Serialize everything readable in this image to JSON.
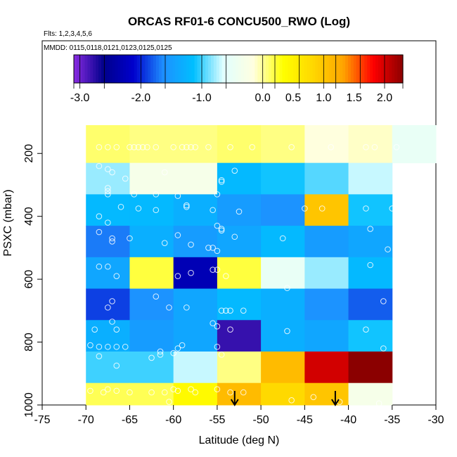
{
  "chart_data": {
    "type": "heatmap",
    "title": "ORCAS RF01-6 CONCU500_RWO (Log)",
    "subtitle_flights": "Flts: 1,2,3,4,5,6",
    "subtitle_dates": "MMDD: 0115,0118,0121,0123,0125,0125",
    "xlabel": "Latitude (deg N)",
    "ylabel": "PSXC (mbar)",
    "xlim": [
      -75,
      -30
    ],
    "ylim": [
      1000,
      110
    ],
    "x_ticks": [
      -75,
      -70,
      -65,
      -60,
      -55,
      -50,
      -45,
      -40,
      -35,
      -30
    ],
    "y_ticks": [
      200,
      400,
      600,
      800,
      1000
    ],
    "colorbar": {
      "range": [
        -3.1,
        2.3
      ],
      "ticks": [
        -3.0,
        -2.0,
        -1.0,
        0.0,
        0.5,
        1.0,
        1.5,
        2.0
      ],
      "tick_labels": [
        "-3.0",
        "-2.0",
        "-1.0",
        "0.0",
        "0.5",
        "1.0",
        "1.5",
        "2.0"
      ],
      "segment_boundaries": [
        -3.1,
        -3.0,
        -2.6,
        -2.0,
        -1.6,
        -1.0,
        -0.6,
        0.0,
        0.2,
        0.6,
        1.0,
        1.2,
        1.6,
        2.0,
        2.3
      ],
      "colors": [
        "#8a2be2",
        "#00008b",
        "#0000cd",
        "#1e90ff",
        "#00bfff",
        "#e0ffff",
        "#ffffe0",
        "#ffff00",
        "#ffd700",
        "#ffa500",
        "#ff0000",
        "#8b0000"
      ]
    },
    "x_bins": [
      -70,
      -65,
      -60,
      -55,
      -50,
      -45,
      -40,
      -35,
      -30
    ],
    "y_bins": [
      110,
      230,
      330,
      430,
      530,
      630,
      730,
      830,
      930,
      1000
    ],
    "cells": [
      {
        "row": 0,
        "values": [
          0.1,
          0.05,
          0.05,
          0.1,
          0.05,
          -0.15,
          -0.1,
          -0.5
        ]
      },
      {
        "row": 1,
        "values": [
          -0.8,
          -0.3,
          -0.3,
          -1.2,
          -1.1,
          -0.95,
          -0.7,
          null
        ]
      },
      {
        "row": 2,
        "values": [
          -1.2,
          -1.2,
          -1.3,
          -1.5,
          -1.6,
          1.0,
          -1.1,
          null
        ]
      },
      {
        "row": 3,
        "values": [
          -1.7,
          -1.3,
          -1.5,
          -1.4,
          -1.2,
          -1.5,
          -1.4,
          null
        ]
      },
      {
        "row": 4,
        "values": [
          -1.4,
          0.2,
          -2.3,
          0.2,
          -0.5,
          -0.8,
          -1.2,
          null
        ]
      },
      {
        "row": 5,
        "values": [
          -1.9,
          -1.6,
          -1.4,
          -1.2,
          -1.3,
          -1.6,
          -1.8,
          null
        ]
      },
      {
        "row": 6,
        "values": [
          -1.3,
          -1.5,
          -1.4,
          -2.8,
          -1.3,
          -1.4,
          -1.1,
          null
        ]
      },
      {
        "row": 7,
        "values": [
          -1.0,
          -1.0,
          -0.7,
          0.05,
          1.1,
          2.0,
          2.3,
          null
        ]
      },
      {
        "row": 8,
        "values": [
          0.15,
          0.15,
          0.4,
          1.1,
          0.8,
          1.0,
          -0.3,
          null
        ]
      }
    ],
    "points": [
      [
        -68.5,
        180
      ],
      [
        -67.5,
        180
      ],
      [
        -66.5,
        180
      ],
      [
        -65,
        180
      ],
      [
        -64.5,
        180
      ],
      [
        -64,
        180
      ],
      [
        -63.5,
        180
      ],
      [
        -63,
        180
      ],
      [
        -62,
        180
      ],
      [
        -60,
        180
      ],
      [
        -59,
        180
      ],
      [
        -58.5,
        180
      ],
      [
        -58,
        180
      ],
      [
        -57.5,
        180
      ],
      [
        -56,
        180
      ],
      [
        -53.5,
        180
      ],
      [
        -51,
        180
      ],
      [
        -46.5,
        180
      ],
      [
        -42,
        180
      ],
      [
        -38,
        180
      ],
      [
        -37,
        180
      ],
      [
        -34.5,
        180
      ],
      [
        -68.5,
        240
      ],
      [
        -67.5,
        250
      ],
      [
        -67,
        260
      ],
      [
        -65.5,
        280
      ],
      [
        -61,
        260
      ],
      [
        -54.5,
        290
      ],
      [
        -54.5,
        285
      ],
      [
        -53,
        255
      ],
      [
        -67.5,
        310
      ],
      [
        -67.5,
        320
      ],
      [
        -67.5,
        330
      ],
      [
        -64.5,
        330
      ],
      [
        -62,
        330
      ],
      [
        -59.5,
        335
      ],
      [
        -55,
        330
      ],
      [
        -68.5,
        400
      ],
      [
        -66,
        370
      ],
      [
        -64,
        375
      ],
      [
        -62,
        380
      ],
      [
        -58.5,
        365
      ],
      [
        -58.5,
        370
      ],
      [
        -55.5,
        380
      ],
      [
        -52.5,
        385
      ],
      [
        -45,
        375
      ],
      [
        -43,
        375
      ],
      [
        -38,
        375
      ],
      [
        -35,
        375
      ],
      [
        -67.5,
        420
      ],
      [
        -68.5,
        450
      ],
      [
        -67,
        470
      ],
      [
        -67,
        480
      ],
      [
        -65,
        470
      ],
      [
        -61,
        485
      ],
      [
        -59.5,
        460
      ],
      [
        -58,
        490
      ],
      [
        -56,
        500
      ],
      [
        -55.5,
        500
      ],
      [
        -55,
        510
      ],
      [
        -55,
        430
      ],
      [
        -54.5,
        440
      ],
      [
        -54.5,
        445
      ],
      [
        -53,
        465
      ],
      [
        -47.5,
        470
      ],
      [
        -37.5,
        440
      ],
      [
        -35.5,
        505
      ],
      [
        -68.5,
        560
      ],
      [
        -67.5,
        560
      ],
      [
        -66.5,
        590
      ],
      [
        -59.5,
        590
      ],
      [
        -58,
        580
      ],
      [
        -55.5,
        570
      ],
      [
        -55,
        570
      ],
      [
        -54,
        590
      ],
      [
        -37.5,
        555
      ],
      [
        -67,
        670
      ],
      [
        -67.5,
        690
      ],
      [
        -62,
        655
      ],
      [
        -60.5,
        690
      ],
      [
        -58.5,
        690
      ],
      [
        -54.5,
        700
      ],
      [
        -54,
        700
      ],
      [
        -53.5,
        700
      ],
      [
        -52,
        700
      ],
      [
        -47,
        628
      ],
      [
        -36,
        670
      ],
      [
        -67,
        735
      ],
      [
        -69,
        760
      ],
      [
        -66.5,
        760
      ],
      [
        -55.5,
        740
      ],
      [
        -55,
        750
      ],
      [
        -53.5,
        760
      ],
      [
        -47,
        765
      ],
      [
        -38,
        760
      ],
      [
        -69.5,
        810
      ],
      [
        -68.5,
        815
      ],
      [
        -67.5,
        815
      ],
      [
        -66.5,
        815
      ],
      [
        -65.5,
        815
      ],
      [
        -61.5,
        830
      ],
      [
        -60,
        835
      ],
      [
        -59.5,
        820
      ],
      [
        -59,
        810
      ],
      [
        -68.5,
        845
      ],
      [
        -66.5,
        875
      ],
      [
        -62.5,
        850
      ],
      [
        -61.5,
        840
      ],
      [
        -55,
        815
      ],
      [
        -54.5,
        840
      ],
      [
        -36,
        820
      ],
      [
        -69.5,
        955
      ],
      [
        -68,
        960
      ],
      [
        -67.5,
        950
      ],
      [
        -66.5,
        955
      ],
      [
        -65,
        960
      ],
      [
        -62.5,
        960
      ],
      [
        -61,
        960
      ],
      [
        -60,
        950
      ],
      [
        -59.5,
        955
      ],
      [
        -58,
        950
      ],
      [
        -57.5,
        960
      ],
      [
        -55,
        950
      ],
      [
        -53.5,
        960
      ],
      [
        -52,
        960
      ],
      [
        -46.5,
        985
      ],
      [
        -44,
        975
      ],
      [
        -41,
        990
      ],
      [
        -36.5,
        995
      ],
      [
        -60.5,
        990
      ]
    ],
    "arrows": [
      -53,
      -41.5
    ]
  }
}
